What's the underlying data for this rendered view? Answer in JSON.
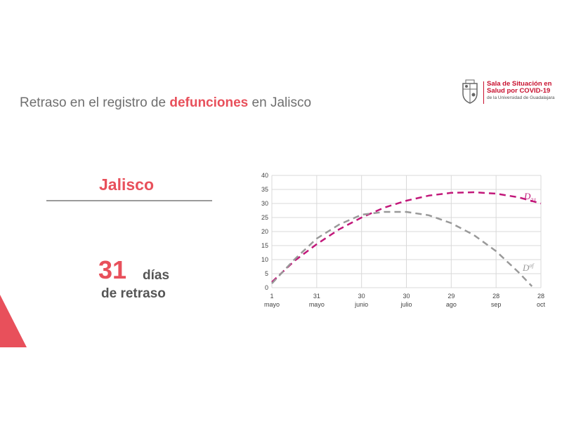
{
  "header": {
    "title_pre": "Retraso en el registro de ",
    "title_highlight": "defunciones",
    "title_post": " en Jalisco"
  },
  "logo": {
    "line1": "Sala de Situación en",
    "line2": "Salud por COVID-19",
    "line3": "de la Universidad de Guadalajara"
  },
  "panel": {
    "region": "Jalisco",
    "delay_number": "31",
    "delay_unit": "días",
    "delay_caption": "de retraso"
  },
  "colors": {
    "accent": "#e8505b",
    "series_d31": "#c2187a",
    "series_dof": "#999999",
    "grid": "#d9d9d9"
  },
  "chart_data": {
    "type": "line",
    "title": "",
    "xlabel": "",
    "ylabel": "",
    "ylim": [
      0,
      40
    ],
    "yticks": [
      0,
      5,
      10,
      15,
      20,
      25,
      30,
      35,
      40
    ],
    "xlim": [
      0,
      180
    ],
    "xticks": [
      {
        "value": 0,
        "day": "1",
        "month": "mayo"
      },
      {
        "value": 30,
        "day": "31",
        "month": "mayo"
      },
      {
        "value": 60,
        "day": "30",
        "month": "junio"
      },
      {
        "value": 90,
        "day": "30",
        "month": "julio"
      },
      {
        "value": 120,
        "day": "29",
        "month": "ago"
      },
      {
        "value": 150,
        "day": "28",
        "month": "sep"
      },
      {
        "value": 180,
        "day": "28",
        "month": "oct"
      }
    ],
    "grid": true,
    "series": [
      {
        "name": "D31",
        "label_main": "D",
        "label_sub": "31",
        "style": "dashed",
        "color": "#c2187a",
        "x": [
          0,
          15,
          30,
          45,
          60,
          75,
          90,
          105,
          120,
          135,
          150,
          165,
          180
        ],
        "y": [
          2.0,
          9.5,
          15.5,
          20.8,
          25.0,
          28.5,
          31.0,
          32.8,
          33.8,
          34.0,
          33.5,
          32.2,
          30.0
        ]
      },
      {
        "name": "Dof",
        "label_main": "D",
        "label_sup": "of",
        "style": "dashed",
        "color": "#999999",
        "x": [
          0,
          15,
          30,
          45,
          60,
          75,
          90,
          105,
          120,
          135,
          150,
          165,
          174
        ],
        "y": [
          1.5,
          10.0,
          17.5,
          22.5,
          26.0,
          27.0,
          27.0,
          25.8,
          23.0,
          18.8,
          13.0,
          5.5,
          0.5
        ]
      }
    ]
  }
}
